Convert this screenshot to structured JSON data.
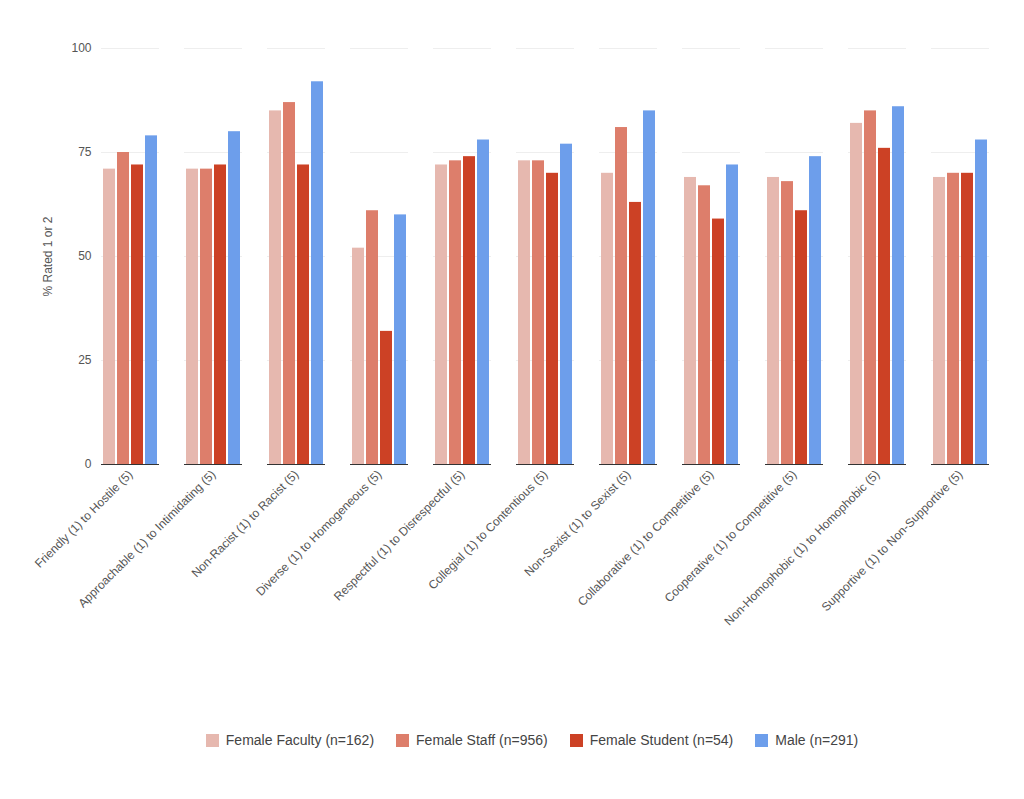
{
  "chart_data": {
    "type": "bar",
    "y_label": "% Rated 1 or 2",
    "categories": [
      "Friendly (1) to Hostile (5)",
      "Approachable (1) to Intimidating (5)",
      "Non-Racist (1) to Racist (5)",
      "Diverse (1) to Homogeneous (5)",
      "Respectful (1) to Disrespectful (5)",
      "Collegial (1) to Contentious (5)",
      "Non-Sexist (1) to Sexist (5)",
      "Collaborative (1) to Competitive (5)",
      "Cooperative (1) to Competitive (5)",
      "Non-Homophobic (1) to Homophobic (5)",
      "Supportive (1) to Non-Supportive (5)"
    ],
    "series": [
      {
        "name": "Female Faculty (n=162)",
        "color": "#e6b8af",
        "values": [
          71,
          71,
          85,
          52,
          72,
          73,
          70,
          69,
          69,
          82,
          69
        ]
      },
      {
        "name": "Female Staff (n=956)",
        "color": "#dd7e6b",
        "values": [
          75,
          71,
          87,
          61,
          73,
          73,
          81,
          67,
          68,
          85,
          70
        ]
      },
      {
        "name": "Female Student (n=54)",
        "color": "#cc4125",
        "values": [
          72,
          72,
          72,
          32,
          74,
          70,
          63,
          59,
          61,
          76,
          70
        ]
      },
      {
        "name": "Male (n=291)",
        "color": "#6d9eeb",
        "values": [
          79,
          80,
          92,
          60,
          78,
          77,
          85,
          72,
          74,
          86,
          78
        ]
      }
    ],
    "ylim": [
      0,
      100
    ],
    "yticks": [
      0,
      25,
      50,
      75,
      100
    ],
    "grid": true,
    "legend": "bottom"
  }
}
